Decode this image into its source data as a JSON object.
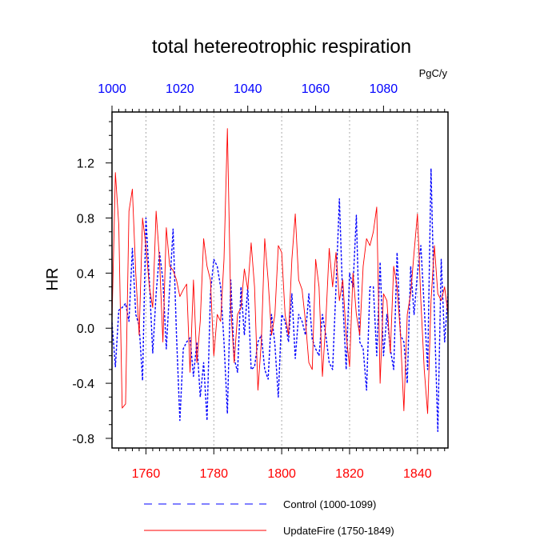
{
  "chart_data": {
    "type": "line",
    "title": "total hetereotrophic respiration",
    "ylabel": "HR",
    "units_label": "PgC/y",
    "ylim": [
      -0.87,
      1.57
    ],
    "yticks": [
      "-0.8",
      "-0.4",
      "0.0",
      "0.4",
      "0.8",
      "1.2"
    ],
    "x_bottom": {
      "range": [
        1750,
        1849
      ],
      "ticks": [
        "1760",
        "1780",
        "1800",
        "1820",
        "1840"
      ],
      "color": "#ff0000"
    },
    "x_top": {
      "range": [
        1000,
        1099
      ],
      "ticks": [
        "1000",
        "1020",
        "1040",
        "1060",
        "1080"
      ],
      "color": "#0000ff"
    },
    "grid": "vertical dotted at major bottom ticks",
    "legend_position": "bottom",
    "series": [
      {
        "name": "Control (1000-1099)",
        "axis": "top",
        "color": "#0000ff",
        "style": "dashed",
        "x_start": 1000,
        "values": [
          0.04,
          -0.28,
          0.13,
          0.15,
          0.18,
          0.05,
          0.58,
          0.1,
          0.02,
          -0.38,
          0.8,
          0.35,
          -0.18,
          0.25,
          0.55,
          0.35,
          -0.15,
          0.3,
          0.72,
          -0.05,
          -0.67,
          -0.15,
          -0.1,
          -0.07,
          -0.35,
          -0.1,
          -0.5,
          -0.25,
          -0.67,
          0.25,
          0.5,
          0.45,
          0.3,
          -0.1,
          -0.62,
          0.35,
          -0.22,
          -0.32,
          0.3,
          -0.05,
          0.3,
          -0.3,
          -0.28,
          -0.1,
          -0.05,
          -0.3,
          -0.37,
          0.1,
          -0.12,
          -0.5,
          0.1,
          0.05,
          -0.1,
          0.25,
          -0.22,
          0.1,
          0.05,
          -0.05,
          0.25,
          -0.08,
          -0.15,
          -0.2,
          0.1,
          -0.05,
          -0.25,
          -0.3,
          0.3,
          0.94,
          0.2,
          -0.3,
          0.4,
          0.3,
          0.82,
          -0.1,
          -0.15,
          -0.45,
          0.3,
          0.3,
          -0.2,
          0.48,
          -0.2,
          0.1,
          -0.15,
          -0.3,
          0.55,
          -0.05,
          -0.1,
          -0.4,
          0.45,
          0.1,
          0.4,
          0.6,
          0.15,
          -0.3,
          1.16,
          0.1,
          -0.75,
          0.5,
          -0.1,
          0.25
        ]
      },
      {
        "name": "UpdateFire (1750-1849)",
        "axis": "bottom",
        "color": "#ff0000",
        "style": "solid",
        "x_start": 1750,
        "values": [
          0.05,
          1.13,
          0.75,
          -0.58,
          -0.55,
          0.85,
          1.01,
          0.4,
          -0.05,
          0.8,
          0.6,
          0.3,
          0.15,
          0.85,
          0.5,
          -0.1,
          0.73,
          0.45,
          0.42,
          0.35,
          0.23,
          0.28,
          0.32,
          -0.32,
          0.35,
          -0.25,
          0.05,
          0.65,
          0.45,
          0.35,
          -0.2,
          0.1,
          0.05,
          0.5,
          1.45,
          0.15,
          -0.25,
          0.1,
          0.15,
          0.43,
          0.28,
          0.62,
          0.3,
          -0.45,
          -0.1,
          0.65,
          0.35,
          -0.05,
          0.1,
          0.6,
          0.55,
          0.1,
          -0.05,
          0.5,
          0.83,
          0.35,
          0.28,
          0.05,
          -0.25,
          -0.3,
          0.5,
          0.3,
          -0.35,
          0.05,
          0.58,
          0.3,
          0.55,
          0.2,
          0.35,
          -0.05,
          -0.28,
          0.4,
          0.1,
          -0.05,
          0.45,
          0.65,
          0.6,
          0.7,
          0.88,
          -0.4,
          0.25,
          0.2,
          -0.18,
          0.45,
          0.3,
          -0.05,
          -0.6,
          0.1,
          0.25,
          0.55,
          0.83,
          0.2,
          -0.3,
          -0.62,
          0.2,
          0.6,
          0.25,
          0.2,
          0.3,
          0.1
        ]
      }
    ]
  }
}
